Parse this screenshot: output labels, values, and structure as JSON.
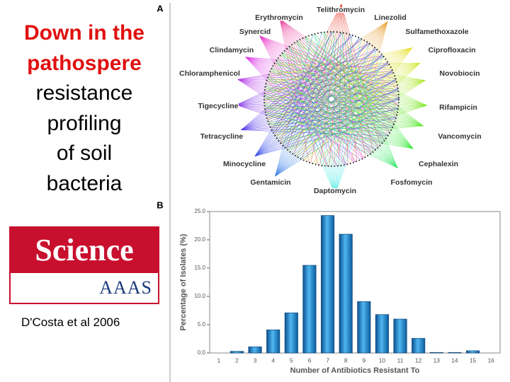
{
  "slide": {
    "title_red": [
      "Down in the",
      "pathospere"
    ],
    "title_black": [
      "resistance",
      "profiling",
      "of soil",
      "bacteria"
    ],
    "logo": {
      "name": "Science",
      "publisher": "AAAS"
    },
    "citation": "D'Costa et al 2006",
    "panel_a_label": "A",
    "panel_b_label": "B"
  },
  "network": {
    "nodes": [
      "Telithromycin",
      "Erythromycin",
      "Linezolid",
      "Synercid",
      "Sulfamethoxazole",
      "Clindamycin",
      "Ciprofloxacin",
      "Chloramphenicol",
      "Novobiocin",
      "Tigecycline",
      "Rifampicin",
      "Tetracycline",
      "Vancomycin",
      "Minocycline",
      "Cephalexin",
      "Gentamicin",
      "Fosfomycin",
      "Daptomycin"
    ]
  },
  "chart_data": {
    "type": "bar",
    "x_label": "Number of Antibiotics Resistant To",
    "y_label": "Percentage of Isolates (%)",
    "categories": [
      "1",
      "2",
      "3",
      "4",
      "5",
      "6",
      "7",
      "8",
      "9",
      "10",
      "11",
      "12",
      "13",
      "14",
      "15",
      "16"
    ],
    "values": [
      0,
      0.3,
      1.1,
      4.1,
      7.1,
      15.5,
      24.3,
      21.0,
      9.1,
      6.8,
      6.0,
      2.6,
      0.1,
      0.1,
      0.4,
      0
    ],
    "color": "#1e8ed8",
    "ylim": [
      0,
      25
    ],
    "yticks": [
      {
        "value": 0,
        "label": "0.0"
      },
      {
        "value": 5,
        "label": "5.0"
      },
      {
        "value": 10,
        "label": "10.0"
      },
      {
        "value": 15,
        "label": "15.0"
      },
      {
        "value": 20,
        "label": "20.0"
      },
      {
        "value": 25,
        "label": "25.0"
      }
    ]
  }
}
